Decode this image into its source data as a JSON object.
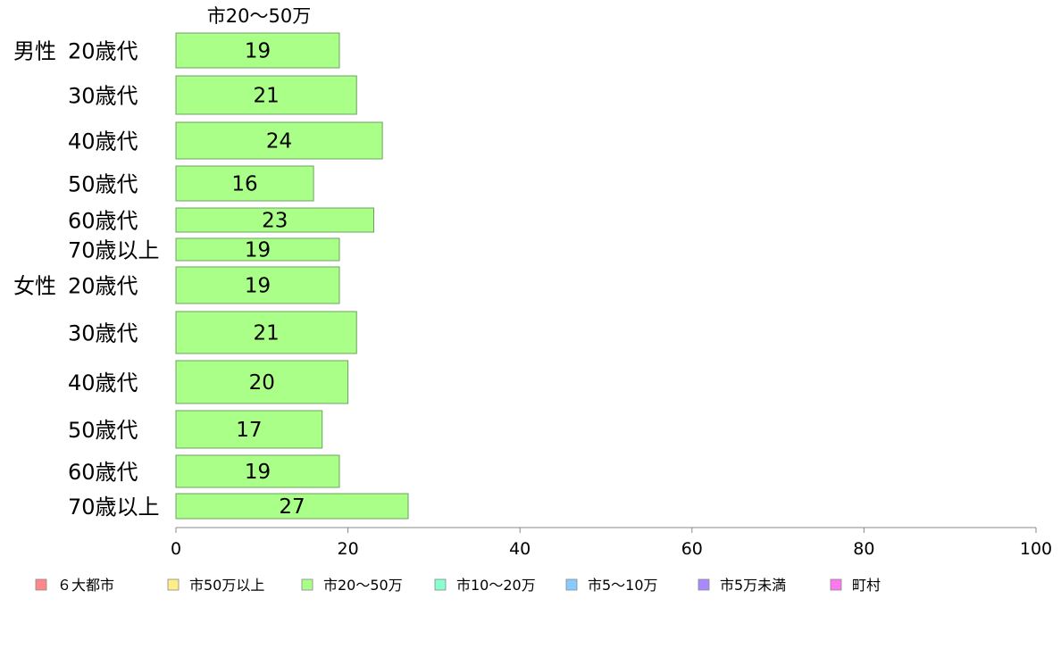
{
  "chart_data": {
    "type": "bar",
    "orientation": "horizontal",
    "title": "市20〜50万",
    "xlim": [
      0,
      100
    ],
    "xticks": [
      0,
      20,
      40,
      60,
      80,
      100
    ],
    "grid": false,
    "legend_position": "bottom",
    "colors": {
      "bar_fill": "#aaff88",
      "bar_stroke": "#6ca060",
      "axis": "#888888"
    },
    "groups": [
      {
        "label": "男性",
        "items": [
          {
            "label": "20歳代",
            "value": 19
          },
          {
            "label": "30歳代",
            "value": 21
          },
          {
            "label": "40歳代",
            "value": 24
          },
          {
            "label": "50歳代",
            "value": 16
          },
          {
            "label": "60歳代",
            "value": 23
          },
          {
            "label": "70歳以上",
            "value": 19
          }
        ]
      },
      {
        "label": "女性",
        "items": [
          {
            "label": "20歳代",
            "value": 19
          },
          {
            "label": "30歳代",
            "value": 21
          },
          {
            "label": "40歳代",
            "value": 20
          },
          {
            "label": "50歳代",
            "value": 17
          },
          {
            "label": "60歳代",
            "value": 19
          },
          {
            "label": "70歳以上",
            "value": 27
          }
        ]
      }
    ],
    "legend": [
      {
        "label": "６大都市",
        "color": "#ff8888"
      },
      {
        "label": "市50万以上",
        "color": "#ffee88"
      },
      {
        "label": "市20〜50万",
        "color": "#aaff88"
      },
      {
        "label": "市10〜20万",
        "color": "#88ffcc"
      },
      {
        "label": "市5〜10万",
        "color": "#88ccff"
      },
      {
        "label": "市5万未満",
        "color": "#aa88ff"
      },
      {
        "label": "町村",
        "color": "#ff77ee"
      }
    ]
  }
}
